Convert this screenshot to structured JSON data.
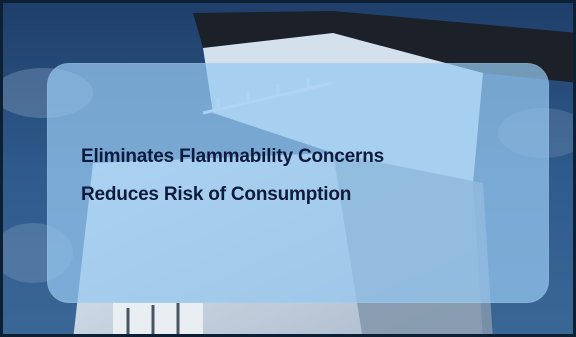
{
  "background": {
    "subject": "building-photo",
    "sky_color": "#2f5a8c",
    "wall_color": "#c9d7e6"
  },
  "panel": {
    "lines": [
      "Eliminates Flammability Concerns",
      "Reduces Risk of Consumption"
    ],
    "text_color": "#0d1b3d",
    "fill_color": "#96c8f0"
  }
}
